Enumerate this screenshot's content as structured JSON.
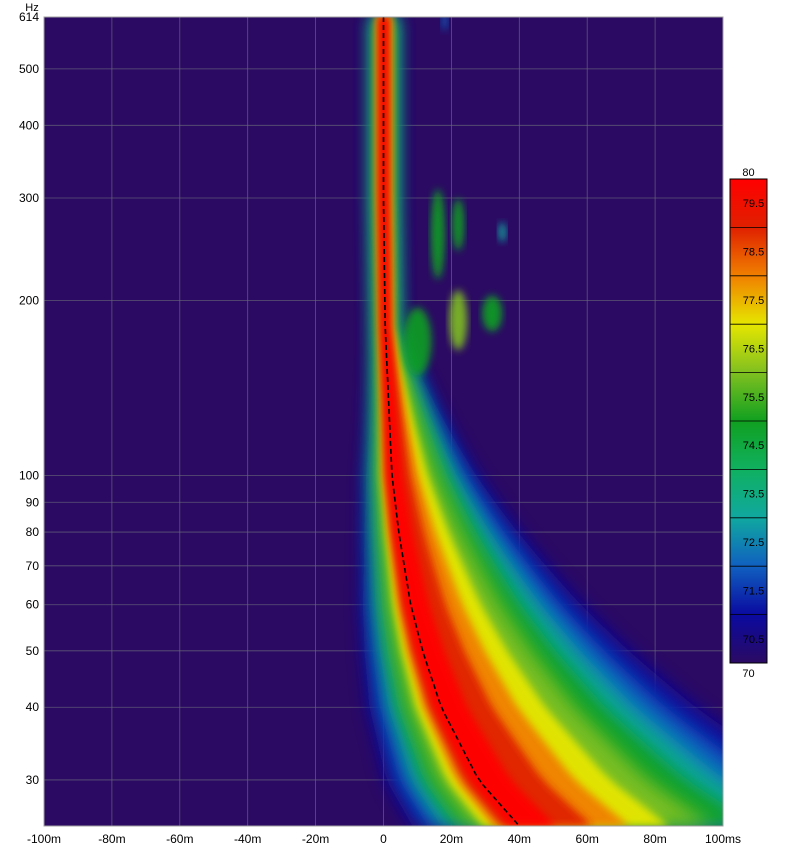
{
  "chart_data": {
    "type": "heatmap",
    "title": "",
    "y_unit_label": "Hz",
    "x_scale": "linear",
    "y_scale": "log",
    "xlim": [
      -100,
      100
    ],
    "ylim": [
      25,
      614
    ],
    "x_ticks": [
      {
        "value": -100,
        "label": "-100m"
      },
      {
        "value": -80,
        "label": "-80m"
      },
      {
        "value": -60,
        "label": "-60m"
      },
      {
        "value": -40,
        "label": "-40m"
      },
      {
        "value": -20,
        "label": "-20m"
      },
      {
        "value": 0,
        "label": "0"
      },
      {
        "value": 20,
        "label": "20m"
      },
      {
        "value": 40,
        "label": "40m"
      },
      {
        "value": 60,
        "label": "60m"
      },
      {
        "value": 80,
        "label": "80m"
      },
      {
        "value": 100,
        "label": "100ms"
      }
    ],
    "y_ticks": [
      {
        "value": 614,
        "label": "614"
      },
      {
        "value": 500,
        "label": "500"
      },
      {
        "value": 400,
        "label": "400"
      },
      {
        "value": 300,
        "label": "300"
      },
      {
        "value": 200,
        "label": "200"
      },
      {
        "value": 100,
        "label": "100"
      },
      {
        "value": 90,
        "label": "90"
      },
      {
        "value": 80,
        "label": "80"
      },
      {
        "value": 70,
        "label": "70"
      },
      {
        "value": 60,
        "label": "60"
      },
      {
        "value": 50,
        "label": "50"
      },
      {
        "value": 40,
        "label": "40"
      },
      {
        "value": 30,
        "label": "30"
      }
    ],
    "colorbar": {
      "min": 70,
      "max": 80,
      "min_label": "70",
      "max_label": "80",
      "tick_labels": [
        "79.5",
        "78.5",
        "77.5",
        "76.5",
        "75.5",
        "74.5",
        "73.5",
        "72.5",
        "71.5",
        "70.5"
      ],
      "tick_values": [
        79.5,
        78.5,
        77.5,
        76.5,
        75.5,
        74.5,
        73.5,
        72.5,
        71.5,
        70.5
      ]
    },
    "grid": true,
    "colors": {
      "background": "#2b0a63",
      "grid": "#6a6a7a",
      "dashed_line": "#000000",
      "scale": [
        "#2b0a63",
        "#0a0aa0",
        "#1060c0",
        "#10a8a0",
        "#10b060",
        "#10a020",
        "#80c020",
        "#e6e600",
        "#f08000",
        "#e02000",
        "#ff0000"
      ]
    },
    "ridge_delay_ms": [
      {
        "freq": 614,
        "delay": 0
      },
      {
        "freq": 300,
        "delay": 0
      },
      {
        "freq": 180,
        "delay": 0.5
      },
      {
        "freq": 100,
        "delay": 2.5
      },
      {
        "freq": 80,
        "delay": 4.5
      },
      {
        "freq": 60,
        "delay": 8
      },
      {
        "freq": 50,
        "delay": 11.5
      },
      {
        "freq": 40,
        "delay": 17
      },
      {
        "freq": 30,
        "delay": 28
      },
      {
        "freq": 25,
        "delay": 40
      }
    ]
  }
}
